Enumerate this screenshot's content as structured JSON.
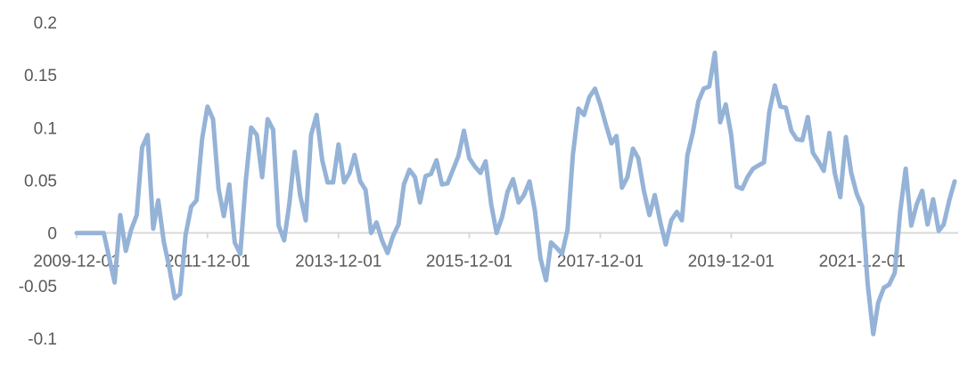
{
  "chart_data": {
    "type": "line",
    "title": "",
    "xlabel": "",
    "ylabel": "",
    "ylim": [
      -0.1,
      0.2
    ],
    "y_ticks": [
      "0.2",
      "0.15",
      "0.1",
      "0.05",
      "0",
      "-0.05",
      "-0.1"
    ],
    "y_tick_values": [
      0.2,
      0.15,
      0.1,
      0.05,
      0,
      -0.05,
      -0.1
    ],
    "x_ticks": [
      "2009-12-01",
      "2011-12-01",
      "2013-12-01",
      "2015-12-01",
      "2017-12-01",
      "2019-12-01",
      "2021-12-01"
    ],
    "grid": false,
    "legend": "none",
    "line_color": "#95b3d7",
    "axis_color": "#d9d9d9",
    "x": [
      "2009-12-01",
      "2010-01-01",
      "2010-02-01",
      "2010-03-01",
      "2010-04-01",
      "2010-05-01",
      "2010-06-01",
      "2010-07-01",
      "2010-08-01",
      "2010-09-01",
      "2010-10-01",
      "2010-11-01",
      "2010-12-01",
      "2011-01-01",
      "2011-02-01",
      "2011-03-01",
      "2011-04-01",
      "2011-05-01",
      "2011-06-01",
      "2011-07-01",
      "2011-08-01",
      "2011-09-01",
      "2011-10-01",
      "2011-11-01",
      "2011-12-01",
      "2012-01-01",
      "2012-02-01",
      "2012-03-01",
      "2012-04-01",
      "2012-05-01",
      "2012-06-01",
      "2012-07-01",
      "2012-08-01",
      "2012-09-01",
      "2012-10-01",
      "2012-11-01",
      "2012-12-01",
      "2013-01-01",
      "2013-02-01",
      "2013-03-01",
      "2013-04-01",
      "2013-05-01",
      "2013-06-01",
      "2013-07-01",
      "2013-08-01",
      "2013-09-01",
      "2013-10-01",
      "2013-11-01",
      "2013-12-01",
      "2014-01-01",
      "2014-02-01",
      "2014-03-01",
      "2014-04-01",
      "2014-05-01",
      "2014-06-01",
      "2014-07-01",
      "2014-08-01",
      "2014-09-01",
      "2014-10-01",
      "2014-11-01",
      "2014-12-01",
      "2015-01-01",
      "2015-02-01",
      "2015-03-01",
      "2015-04-01",
      "2015-05-01",
      "2015-06-01",
      "2015-07-01",
      "2015-08-01",
      "2015-09-01",
      "2015-10-01",
      "2015-11-01",
      "2015-12-01",
      "2016-01-01",
      "2016-02-01",
      "2016-03-01",
      "2016-04-01",
      "2016-05-01",
      "2016-06-01",
      "2016-07-01",
      "2016-08-01",
      "2016-09-01",
      "2016-10-01",
      "2016-11-01",
      "2016-12-01",
      "2017-01-01",
      "2017-02-01",
      "2017-03-01",
      "2017-04-01",
      "2017-05-01",
      "2017-06-01",
      "2017-07-01",
      "2017-08-01",
      "2017-09-01",
      "2017-10-01",
      "2017-11-01",
      "2017-12-01",
      "2018-01-01",
      "2018-02-01",
      "2018-03-01",
      "2018-04-01",
      "2018-05-01",
      "2018-06-01",
      "2018-07-01",
      "2018-08-01",
      "2018-09-01",
      "2018-10-01",
      "2018-11-01",
      "2018-12-01",
      "2019-01-01",
      "2019-02-01",
      "2019-03-01",
      "2019-04-01",
      "2019-05-01",
      "2019-06-01",
      "2019-07-01",
      "2019-08-01",
      "2019-09-01",
      "2019-10-01",
      "2019-11-01",
      "2019-12-01",
      "2020-01-01",
      "2020-02-01",
      "2020-03-01",
      "2020-04-01",
      "2020-05-01",
      "2020-06-01",
      "2020-07-01",
      "2020-08-01",
      "2020-09-01",
      "2020-10-01",
      "2020-11-01",
      "2020-12-01",
      "2021-01-01",
      "2021-02-01",
      "2021-03-01",
      "2021-04-01",
      "2021-05-01",
      "2021-06-01",
      "2021-07-01",
      "2021-08-01",
      "2021-09-01",
      "2021-10-01",
      "2021-11-01",
      "2021-12-01",
      "2022-01-01",
      "2022-02-01",
      "2022-03-01",
      "2022-04-01",
      "2022-05-01",
      "2022-06-01",
      "2022-07-01",
      "2022-08-01",
      "2022-09-01",
      "2022-10-01",
      "2022-11-01",
      "2022-12-01",
      "2023-01-01",
      "2023-02-01",
      "2023-03-01",
      "2023-04-01",
      "2023-05-01"
    ],
    "series": [
      {
        "values": [
          0,
          0,
          0,
          0,
          0,
          0,
          -0.024,
          -0.047,
          0.017,
          -0.017,
          0.003,
          0.017,
          0.081,
          0.093,
          0.004,
          0.031,
          -0.008,
          -0.032,
          -0.062,
          -0.058,
          -0.002,
          0.025,
          0.031,
          0.089,
          0.12,
          0.108,
          0.042,
          0.016,
          0.046,
          -0.009,
          -0.02,
          0.048,
          0.1,
          0.093,
          0.053,
          0.108,
          0.098,
          0.007,
          -0.007,
          0.027,
          0.077,
          0.036,
          0.012,
          0.093,
          0.112,
          0.069,
          0.048,
          0.048,
          0.084,
          0.048,
          0.057,
          0.074,
          0.049,
          0.041,
          0,
          0.01,
          -0.007,
          -0.019,
          -0.003,
          0.008,
          0.046,
          0.06,
          0.053,
          0.029,
          0.054,
          0.056,
          0.069,
          0.046,
          0.047,
          0.06,
          0.073,
          0.097,
          0.071,
          0.063,
          0.057,
          0.068,
          0.027,
          0,
          0.015,
          0.039,
          0.051,
          0.029,
          0.036,
          0.049,
          0.021,
          -0.024,
          -0.045,
          -0.009,
          -0.014,
          -0.02,
          0.003,
          0.074,
          0.118,
          0.112,
          0.129,
          0.137,
          0.122,
          0.103,
          0.085,
          0.092,
          0.043,
          0.053,
          0.08,
          0.071,
          0.04,
          0.017,
          0.036,
          0.01,
          -0.011,
          0.012,
          0.02,
          0.012,
          0.074,
          0.095,
          0.125,
          0.137,
          0.139,
          0.171,
          0.105,
          0.122,
          0.093,
          0.044,
          0.042,
          0.053,
          0.061,
          0.064,
          0.067,
          0.115,
          0.14,
          0.12,
          0.119,
          0.097,
          0.089,
          0.088,
          0.11,
          0.076,
          0.068,
          0.059,
          0.095,
          0.057,
          0.034,
          0.091,
          0.057,
          0.037,
          0.025,
          -0.049,
          -0.096,
          -0.066,
          -0.052,
          -0.049,
          -0.038,
          0.02,
          0.061,
          0.007,
          0.027,
          0.04,
          0.008,
          0.032,
          0.002,
          0.008,
          0.031,
          0.049
        ]
      }
    ]
  }
}
